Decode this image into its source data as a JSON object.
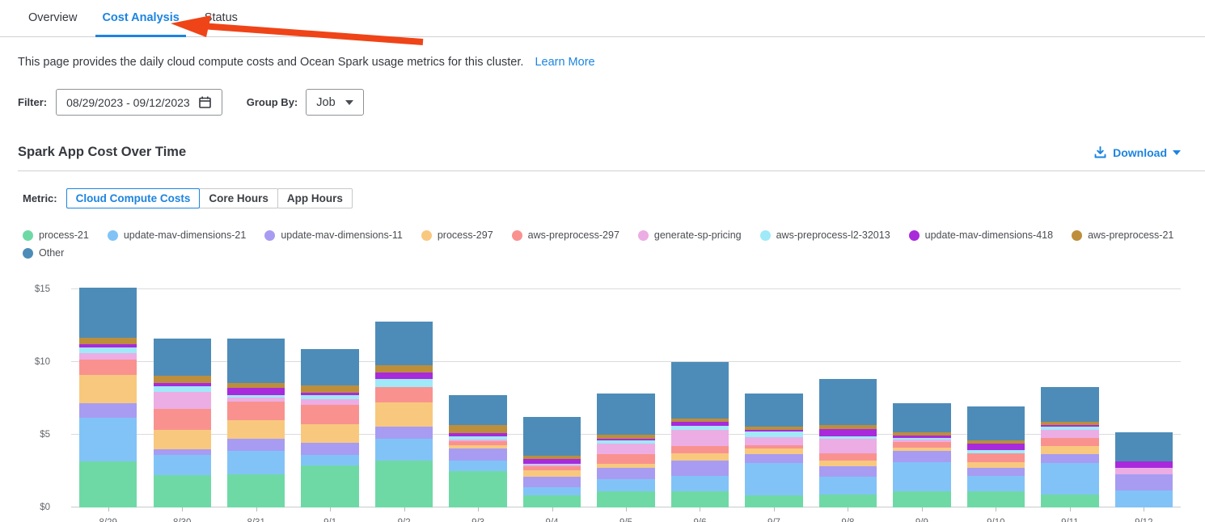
{
  "page": {
    "accent_blue": "#1c84e0",
    "arrow_color": "#ef4418"
  },
  "tabs": {
    "items": [
      {
        "label": "Overview",
        "active": false
      },
      {
        "label": "Cost Analysis",
        "active": true
      },
      {
        "label": "Status",
        "active": false
      }
    ]
  },
  "intro": {
    "text": "This page provides the daily cloud compute costs and Ocean Spark usage metrics for this cluster.",
    "link_label": "Learn More"
  },
  "filters": {
    "filter_label": "Filter:",
    "date_range_value": "08/29/2023  -  09/12/2023",
    "calendar_icon": "calendar-icon",
    "group_by_label": "Group By:",
    "group_by_value": "Job"
  },
  "section": {
    "title": "Spark App Cost Over Time",
    "download_label": "Download",
    "download_icon": "download-icon"
  },
  "metric_toggle": {
    "label": "Metric:",
    "options": [
      {
        "label": "Cloud Compute Costs",
        "selected": true
      },
      {
        "label": "Core Hours",
        "selected": false
      },
      {
        "label": "App Hours",
        "selected": false
      }
    ]
  },
  "chart_data": {
    "type": "bar",
    "stacked": true,
    "title": "Spark App Cost Over Time",
    "xlabel": "",
    "ylabel": "",
    "y_prefix": "$",
    "yticks": [
      0,
      5,
      10,
      15
    ],
    "ylim": [
      0,
      15.5
    ],
    "grid": true,
    "legend_position": "top",
    "grid_color": "#dadbdc",
    "axis_text_color": "#64676c",
    "categories": [
      "8/29",
      "8/30",
      "8/31",
      "9/1",
      "9/2",
      "9/3",
      "9/4",
      "9/5",
      "9/6",
      "9/7",
      "9/8",
      "9/9",
      "9/10",
      "9/11",
      "9/12"
    ],
    "series": [
      {
        "name": "process-21",
        "color": "#6fd9a6",
        "values": [
          3.15,
          2.25,
          2.3,
          2.9,
          3.2,
          2.5,
          0.85,
          1.1,
          1.1,
          0.85,
          0.9,
          1.1,
          1.1,
          0.9,
          0.0
        ]
      },
      {
        "name": "update-mav-dimensions-21",
        "color": "#82c3f7",
        "values": [
          3.0,
          1.35,
          1.6,
          0.7,
          1.55,
          0.7,
          0.55,
          0.85,
          1.05,
          2.2,
          1.2,
          2.0,
          1.05,
          2.15,
          1.15
        ]
      },
      {
        "name": "update-mav-dimensions-11",
        "color": "#a79cf2",
        "values": [
          1.0,
          0.4,
          0.8,
          0.85,
          0.8,
          0.85,
          0.7,
          0.75,
          1.05,
          0.6,
          0.75,
          0.8,
          0.55,
          0.6,
          1.15
        ]
      },
      {
        "name": "process-297",
        "color": "#f8c87e",
        "values": [
          1.95,
          1.35,
          1.3,
          1.3,
          1.7,
          0.25,
          0.45,
          0.3,
          0.55,
          0.4,
          0.4,
          0.2,
          0.4,
          0.55,
          0.0
        ]
      },
      {
        "name": "aws-preprocess-297",
        "color": "#f9928f",
        "values": [
          1.05,
          1.45,
          1.3,
          1.3,
          1.05,
          0.25,
          0.3,
          0.65,
          0.45,
          0.25,
          0.5,
          0.4,
          0.6,
          0.6,
          0.0
        ]
      },
      {
        "name": "generate-sp-pricing",
        "color": "#ebade4",
        "values": [
          0.45,
          1.15,
          0.25,
          0.4,
          0.0,
          0.1,
          0.1,
          0.75,
          1.15,
          0.55,
          0.95,
          0.15,
          0.05,
          0.55,
          0.4
        ]
      },
      {
        "name": "aws-preprocess-l2-32013",
        "color": "#9fe9f8",
        "values": [
          0.4,
          0.4,
          0.2,
          0.3,
          0.55,
          0.25,
          0.05,
          0.2,
          0.25,
          0.35,
          0.2,
          0.15,
          0.2,
          0.2,
          0.0
        ]
      },
      {
        "name": "update-mav-dimensions-418",
        "color": "#a82adb",
        "values": [
          0.2,
          0.2,
          0.5,
          0.15,
          0.45,
          0.2,
          0.35,
          0.15,
          0.3,
          0.15,
          0.5,
          0.15,
          0.45,
          0.1,
          0.45
        ]
      },
      {
        "name": "aws-preprocess-21",
        "color": "#bd8e3b",
        "values": [
          0.45,
          0.5,
          0.3,
          0.5,
          0.5,
          0.55,
          0.2,
          0.25,
          0.2,
          0.2,
          0.25,
          0.2,
          0.2,
          0.25,
          0.0
        ]
      },
      {
        "name": "Other",
        "color": "#4d8cb8",
        "values": [
          3.45,
          2.55,
          3.05,
          2.5,
          3.0,
          2.1,
          2.7,
          2.85,
          3.9,
          2.3,
          3.2,
          2.0,
          2.35,
          2.4,
          2.0
        ]
      }
    ]
  }
}
